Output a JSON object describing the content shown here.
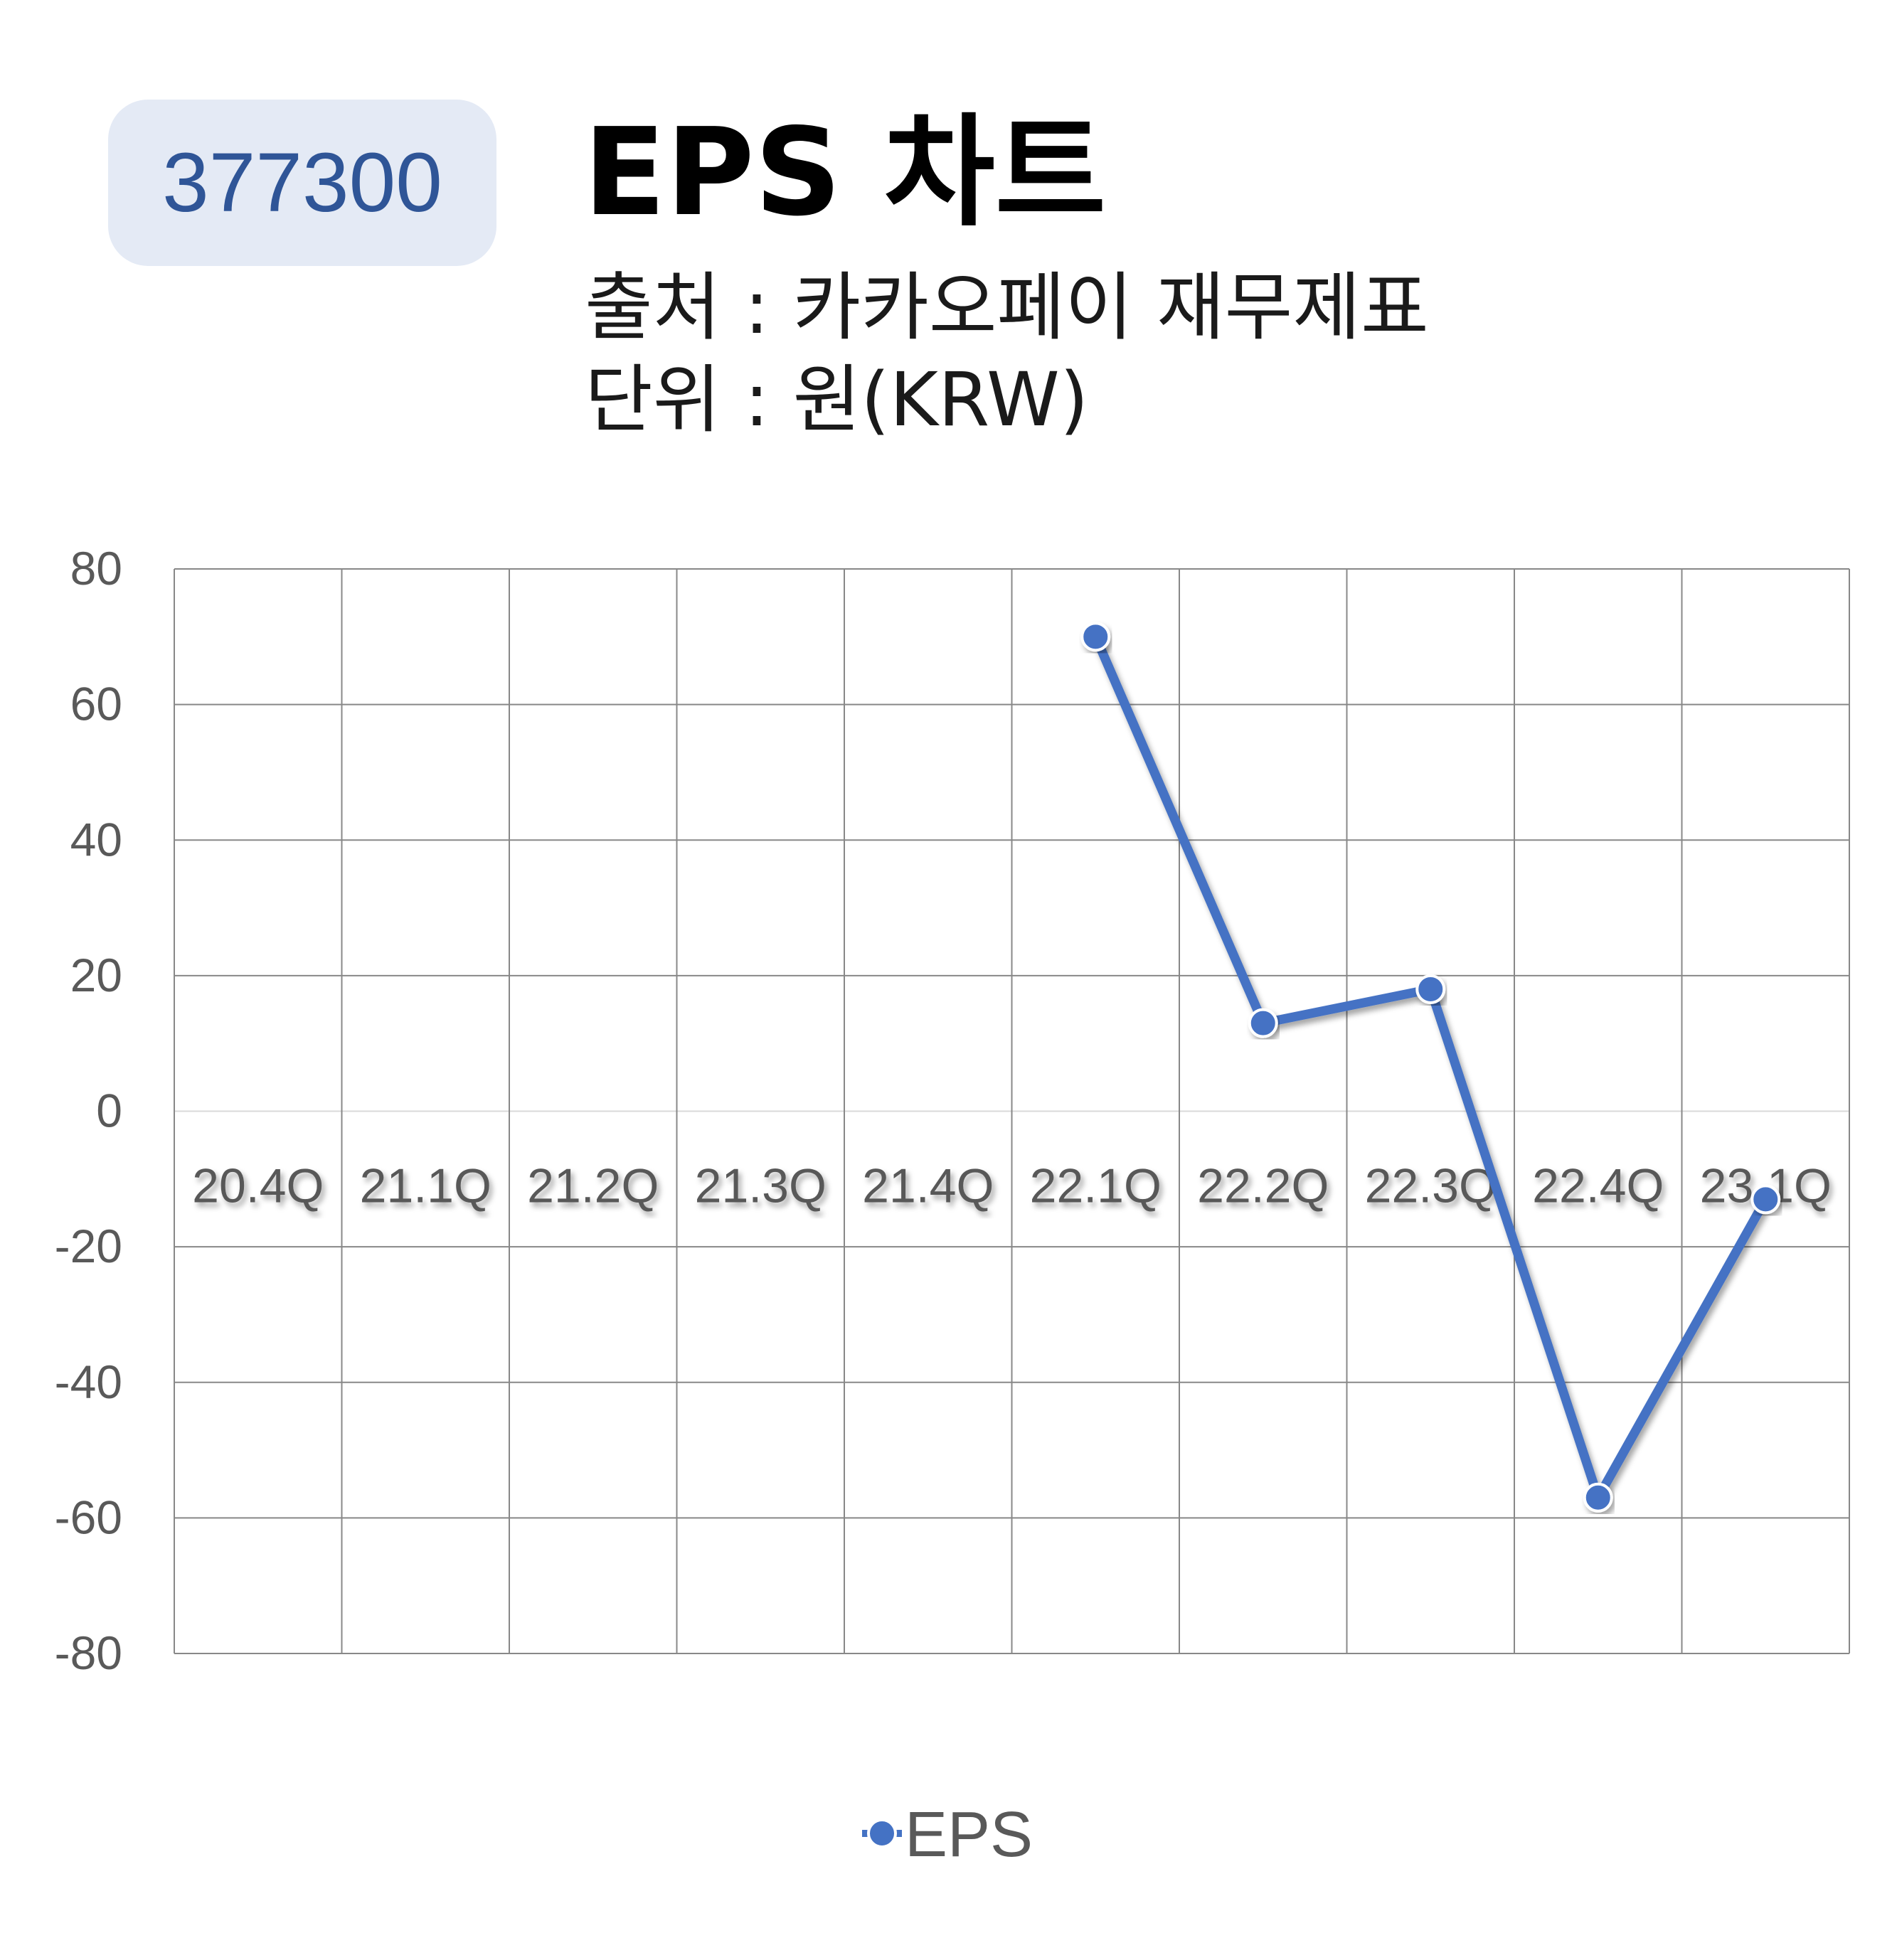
{
  "header": {
    "ticker": "377300",
    "title": "EPS 차트",
    "source": "출처 : 카카오페이 재무제표",
    "unit": "단위 : 원(KRW)"
  },
  "colors": {
    "badge_bg": "#e4eaf5",
    "badge_text": "#2f5597",
    "series": "#4472c4",
    "grid": "#888888",
    "axis_text": "#595959"
  },
  "chart_data": {
    "type": "line",
    "categories": [
      "20.4Q",
      "21.1Q",
      "21.2Q",
      "21.3Q",
      "21.4Q",
      "22.1Q",
      "22.2Q",
      "22.3Q",
      "22.4Q",
      "23.1Q"
    ],
    "series": [
      {
        "name": "EPS",
        "values": [
          null,
          null,
          null,
          null,
          null,
          70,
          13,
          18,
          -57,
          -13
        ]
      }
    ],
    "ylim": [
      -80,
      80
    ],
    "yticks": [
      80,
      60,
      40,
      20,
      0,
      -20,
      -40,
      -60,
      -80
    ],
    "grid": true,
    "legend": "bottom"
  }
}
